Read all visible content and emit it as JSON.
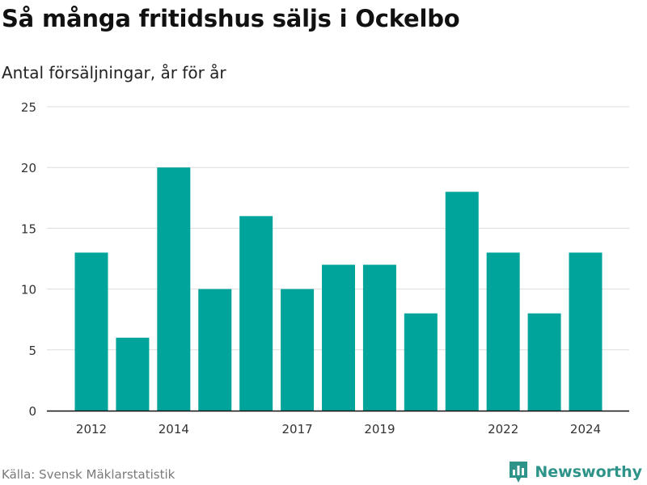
{
  "title": "Så många fritidshus säljs i Ockelbo",
  "subtitle": "Antal försäljningar, år för år",
  "source": "Källa: Svensk Mäklarstatistik",
  "brand": {
    "name": "Newsworthy",
    "icon": "bar-chart-logo-icon",
    "color": "#2e9388"
  },
  "colors": {
    "bar": "#00a49a",
    "grid": "#dddddd",
    "axis": "#111111",
    "tick_text": "#333333"
  },
  "chart_data": {
    "type": "bar",
    "categories": [
      "2012",
      "2013",
      "2014",
      "2015",
      "2016",
      "2017",
      "2018",
      "2019",
      "2020",
      "2021",
      "2022",
      "2023",
      "2024"
    ],
    "x_tick_labels": [
      "2012",
      "",
      "2014",
      "",
      "",
      "2017",
      "",
      "2019",
      "",
      "",
      "2022",
      "",
      "2024"
    ],
    "values": [
      13,
      6,
      20,
      10,
      16,
      10,
      12,
      12,
      8,
      18,
      13,
      8,
      13
    ],
    "title": "Så många fritidshus säljs i Ockelbo",
    "subtitle": "Antal försäljningar, år för år",
    "xlabel": "",
    "ylabel": "",
    "ylim": [
      0,
      25
    ],
    "yticks": [
      0,
      5,
      10,
      15,
      20,
      25
    ],
    "grid": true,
    "legend": "none"
  }
}
